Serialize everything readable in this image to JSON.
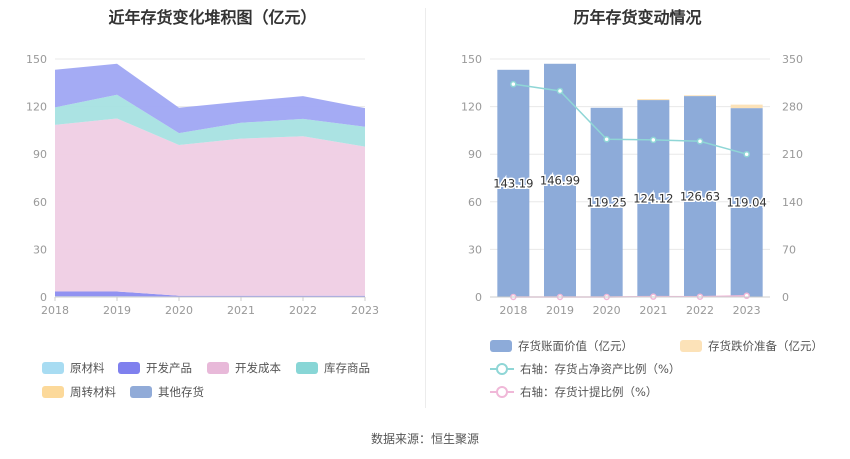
{
  "source_text": "数据来源：恒生聚源",
  "chart_data": [
    {
      "type": "area",
      "stacked": true,
      "title": "近年存货变化堆积图（亿元）",
      "categories": [
        "2018",
        "2019",
        "2020",
        "2021",
        "2022",
        "2023"
      ],
      "yticks": [
        "0",
        "30",
        "60",
        "90",
        "120",
        "150"
      ],
      "ylim": [
        0,
        150
      ],
      "grid": true,
      "legend_position": "bottom",
      "series": [
        {
          "name": "原材料",
          "color": "#a8dcf2",
          "values": [
            0.5,
            0.5,
            0.3,
            0.3,
            0.3,
            0.3
          ]
        },
        {
          "name": "开发产品",
          "color": "#8b8cf0",
          "values": [
            3,
            3,
            0.5,
            0.5,
            0.5,
            0.5
          ]
        },
        {
          "name": "开发成本",
          "color": "#efcde4",
          "values": [
            105,
            109,
            95,
            99,
            100.5,
            94
          ]
        },
        {
          "name": "库存商品",
          "color": "#a6e1e1",
          "values": [
            11,
            15,
            7.5,
            10,
            11,
            12.5
          ]
        },
        {
          "name": "周转材料",
          "color": "#fde0a0",
          "values": [
            0,
            0,
            0,
            0,
            0,
            0
          ]
        },
        {
          "name": "其他存货",
          "color": "#9fa6f3",
          "values": [
            23.69,
            19.49,
            15.95,
            13.32,
            14.33,
            11.74
          ]
        }
      ],
      "legend_items": [
        {
          "name": "原材料",
          "color": "#a8dcf2"
        },
        {
          "name": "开发产品",
          "color": "#7f80ee"
        },
        {
          "name": "开发成本",
          "color": "#e8b9d9"
        },
        {
          "name": "库存商品",
          "color": "#88d6d6"
        },
        {
          "name": "周转材料",
          "color": "#fcd99a"
        },
        {
          "name": "其他存货",
          "color": "#91abd8"
        }
      ]
    },
    {
      "type": "bar",
      "title": "历年存货变动情况",
      "categories": [
        "2018",
        "2019",
        "2020",
        "2021",
        "2022",
        "2023"
      ],
      "yticks_left": [
        "0",
        "30",
        "60",
        "90",
        "120",
        "150"
      ],
      "ylim_left": [
        0,
        150
      ],
      "yticks_right": [
        "0",
        "70",
        "140",
        "210",
        "280",
        "350"
      ],
      "ylim_right": [
        0,
        350
      ],
      "grid": true,
      "legend_position": "bottom",
      "series": [
        {
          "name": "存货账面价值（亿元）",
          "color": "#8dabd9",
          "values": [
            143.19,
            146.99,
            119.25,
            124.12,
            126.63,
            119.04
          ],
          "labels": [
            "143.19",
            "146.99",
            "119.25",
            "124.12",
            "126.63",
            "119.04"
          ]
        },
        {
          "name": "存货跌价准备（亿元）",
          "color": "#fce2b8",
          "values": [
            0,
            0,
            0,
            0.6,
            0.5,
            2.2
          ]
        },
        {
          "name": "右轴：存货占净资产比例（%）",
          "axis": "right",
          "color": "#8fd6d6",
          "values": [
            313,
            303,
            232,
            231,
            229,
            210
          ]
        },
        {
          "name": "右轴：存货计提比例（%）",
          "axis": "right",
          "color": "#f0b8d8",
          "values": [
            0,
            0,
            0,
            0.5,
            0.4,
            1.8
          ]
        }
      ]
    }
  ]
}
